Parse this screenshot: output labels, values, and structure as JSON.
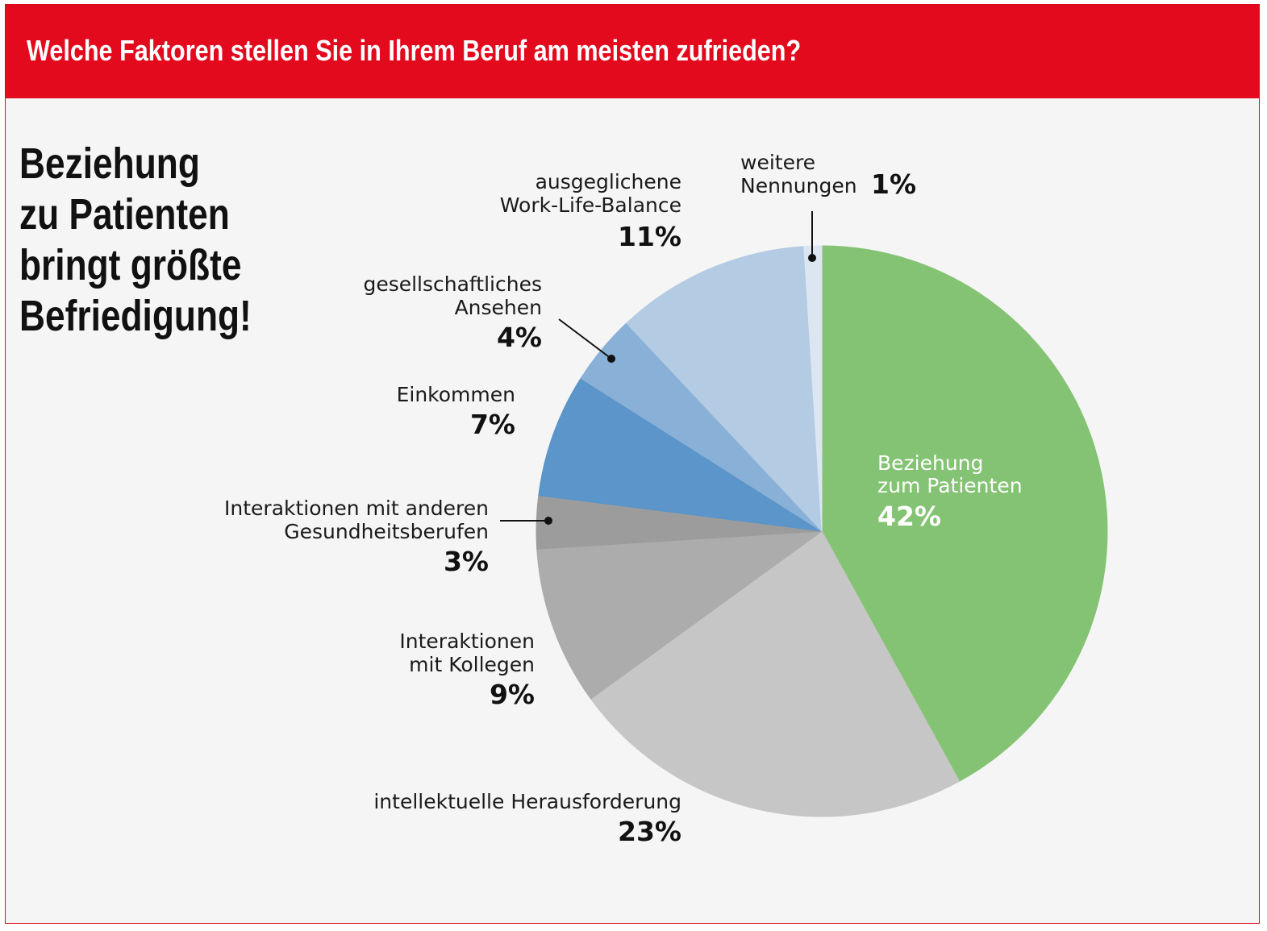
{
  "header": {
    "title": "Welche Faktoren stellen Sie in Ihrem Beruf am meisten zufrieden?"
  },
  "headline": {
    "lines": [
      "Beziehung",
      "zu Patienten",
      "bringt größte",
      "Befriedigung!"
    ]
  },
  "chart_data": {
    "type": "pie",
    "start": "12 o'clock, clockwise",
    "slices": [
      {
        "label_lines": [
          "Beziehung",
          "zum Patienten"
        ],
        "value": 42,
        "value_label": "42%",
        "color": "#85c374"
      },
      {
        "label_lines": [
          "intellektuelle Herausforderung"
        ],
        "value": 23,
        "value_label": "23%",
        "color": "#c6c6c6"
      },
      {
        "label_lines": [
          "Interaktionen",
          "mit Kollegen"
        ],
        "value": 9,
        "value_label": "9%",
        "color": "#acacac"
      },
      {
        "label_lines": [
          "Interaktionen mit anderen",
          "Gesundheitsberufen"
        ],
        "value": 3,
        "value_label": "3%",
        "color": "#9c9c9c"
      },
      {
        "label_lines": [
          "Einkommen"
        ],
        "value": 7,
        "value_label": "7%",
        "color": "#5b95c9"
      },
      {
        "label_lines": [
          "gesellschaftliches",
          "Ansehen"
        ],
        "value": 4,
        "value_label": "4%",
        "color": "#89b0d6"
      },
      {
        "label_lines": [
          "ausgeglichene",
          "Work-Life-Balance"
        ],
        "value": 11,
        "value_label": "11%",
        "color": "#b3cbe3"
      },
      {
        "label_lines": [
          "weitere",
          "Nennungen"
        ],
        "value": 1,
        "value_label": "1%",
        "color": "#dbe6f1"
      }
    ]
  }
}
